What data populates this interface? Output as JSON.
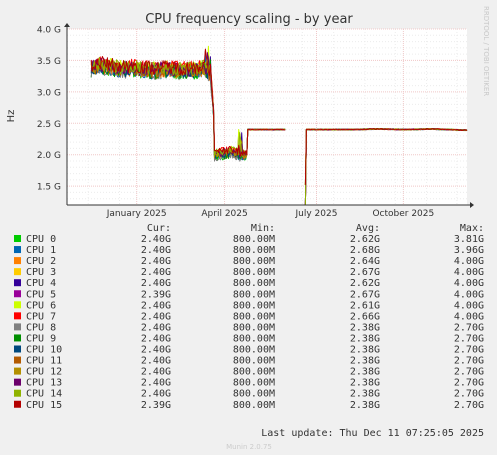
{
  "chart_data": {
    "type": "line",
    "title": "CPU frequency scaling - by year",
    "ylabel": "Hz",
    "side_label": "RRDTOOL / TOBI OETIKER",
    "ylim": [
      1.2,
      4.0
    ],
    "yticks": [
      {
        "value": 1.5,
        "label": "1.5 G"
      },
      {
        "value": 2.0,
        "label": "2.0 G"
      },
      {
        "value": 2.5,
        "label": "2.5 G"
      },
      {
        "value": 3.0,
        "label": "3.0 G"
      },
      {
        "value": 3.5,
        "label": "3.5 G"
      },
      {
        "value": 4.0,
        "label": "4.0 G"
      }
    ],
    "xlim": [
      "2024-11-10",
      "2025-12-11"
    ],
    "xticks": [
      {
        "date": "2025-01-18",
        "label": "January 2025"
      },
      {
        "date": "2025-04-15",
        "label": "April 2025"
      },
      {
        "date": "2025-07-15",
        "label": "July 2025"
      },
      {
        "date": "2025-10-09",
        "label": "October 2025"
      }
    ],
    "grid": true,
    "columns": [
      "Cur:",
      "Min:",
      "Avg:",
      "Max:"
    ],
    "series": [
      {
        "name": "CPU 0",
        "color": "#00cc00",
        "cur": "2.40G",
        "min": "800.00M",
        "avg": "2.62G",
        "max": "3.81G"
      },
      {
        "name": "CPU 1",
        "color": "#0066b3",
        "cur": "2.40G",
        "min": "800.00M",
        "avg": "2.68G",
        "max": "3.96G"
      },
      {
        "name": "CPU 2",
        "color": "#ff8000",
        "cur": "2.40G",
        "min": "800.00M",
        "avg": "2.64G",
        "max": "4.00G"
      },
      {
        "name": "CPU 3",
        "color": "#ffcc00",
        "cur": "2.40G",
        "min": "800.00M",
        "avg": "2.67G",
        "max": "4.00G"
      },
      {
        "name": "CPU 4",
        "color": "#330099",
        "cur": "2.40G",
        "min": "800.00M",
        "avg": "2.62G",
        "max": "4.00G"
      },
      {
        "name": "CPU 5",
        "color": "#990099",
        "cur": "2.39G",
        "min": "800.00M",
        "avg": "2.67G",
        "max": "4.00G"
      },
      {
        "name": "CPU 6",
        "color": "#ccff00",
        "cur": "2.40G",
        "min": "800.00M",
        "avg": "2.61G",
        "max": "4.00G"
      },
      {
        "name": "CPU 7",
        "color": "#ff0000",
        "cur": "2.40G",
        "min": "800.00M",
        "avg": "2.66G",
        "max": "4.00G"
      },
      {
        "name": "CPU 8",
        "color": "#808080",
        "cur": "2.40G",
        "min": "800.00M",
        "avg": "2.38G",
        "max": "2.70G"
      },
      {
        "name": "CPU 9",
        "color": "#008f00",
        "cur": "2.40G",
        "min": "800.00M",
        "avg": "2.38G",
        "max": "2.70G"
      },
      {
        "name": "CPU 10",
        "color": "#00487d",
        "cur": "2.40G",
        "min": "800.00M",
        "avg": "2.38G",
        "max": "2.70G"
      },
      {
        "name": "CPU 11",
        "color": "#b35a00",
        "cur": "2.40G",
        "min": "800.00M",
        "avg": "2.38G",
        "max": "2.70G"
      },
      {
        "name": "CPU 12",
        "color": "#b38f00",
        "cur": "2.40G",
        "min": "800.00M",
        "avg": "2.38G",
        "max": "2.70G"
      },
      {
        "name": "CPU 13",
        "color": "#6b006b",
        "cur": "2.40G",
        "min": "800.00M",
        "avg": "2.38G",
        "max": "2.70G"
      },
      {
        "name": "CPU 14",
        "color": "#8fb300",
        "cur": "2.40G",
        "min": "800.00M",
        "avg": "2.38G",
        "max": "2.70G"
      },
      {
        "name": "CPU 15",
        "color": "#b30000",
        "cur": "2.39G",
        "min": "800.00M",
        "avg": "2.38G",
        "max": "2.70G"
      }
    ],
    "trend": [
      {
        "date": "2024-12-04",
        "value": 3.38
      },
      {
        "date": "2024-12-12",
        "value": 3.42
      },
      {
        "date": "2024-12-22",
        "value": 3.4
      },
      {
        "date": "2025-01-02",
        "value": 3.36
      },
      {
        "date": "2025-01-14",
        "value": 3.38
      },
      {
        "date": "2025-01-26",
        "value": 3.35
      },
      {
        "date": "2025-02-07",
        "value": 3.34
      },
      {
        "date": "2025-02-19",
        "value": 3.36
      },
      {
        "date": "2025-03-03",
        "value": 3.33
      },
      {
        "date": "2025-03-15",
        "value": 3.35
      },
      {
        "date": "2025-03-25",
        "value": 3.38
      },
      {
        "date": "2025-04-01",
        "value": 3.3
      },
      {
        "date": "2025-04-04",
        "value": 2.7
      },
      {
        "date": "2025-04-05",
        "value": 2.0
      },
      {
        "date": "2025-04-15",
        "value": 2.02
      },
      {
        "date": "2025-04-22",
        "value": 2.05
      },
      {
        "date": "2025-05-02",
        "value": 1.98
      },
      {
        "date": "2025-05-07",
        "value": 2.0
      },
      {
        "date": "2025-05-08",
        "value": 2.4
      },
      {
        "date": "2025-06-14",
        "value": 2.4
      },
      {
        "date": "2025-07-02",
        "value": null
      },
      {
        "date": "2025-07-03",
        "value": 1.3
      },
      {
        "date": "2025-07-04",
        "value": 1.18
      },
      {
        "date": "2025-07-05",
        "value": 2.4
      },
      {
        "date": "2025-08-20",
        "value": 2.4
      },
      {
        "date": "2025-09-15",
        "value": 2.41
      },
      {
        "date": "2025-10-10",
        "value": 2.4
      },
      {
        "date": "2025-11-05",
        "value": 2.41
      },
      {
        "date": "2025-12-11",
        "value": 2.39
      }
    ]
  },
  "footer": {
    "last_update": "Last update: Thu Dec 11 07:25:05 2025",
    "generator": "Munin 2.0.75"
  }
}
